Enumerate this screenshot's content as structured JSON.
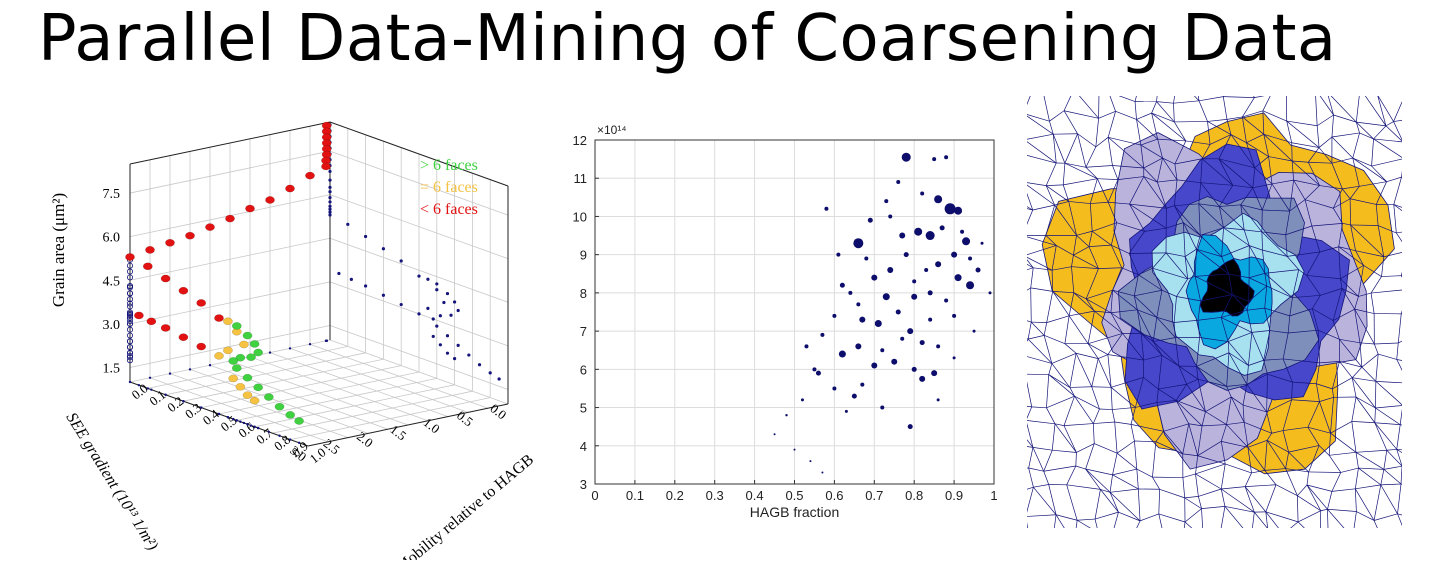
{
  "title": "Parallel Data-Mining of Coarsening Data",
  "colors": {
    "many_faces": "#3fd13f",
    "six_faces": "#f5c242",
    "few_faces": "#e21212",
    "projection": "#14147a",
    "scatter_points": "#0d0d6b",
    "grain_edges": "#141478"
  },
  "chart_data": [
    {
      "type": "scatter",
      "projection": "3d",
      "zlabel": "Grain area (μm²)",
      "xlabel": "SEE gradient (10¹³ 1/m²)",
      "ylabel": "Mobility relative to HAGB",
      "zticks": [
        "1.5",
        "3.0",
        "4.5",
        "6.0",
        "7.5"
      ],
      "xticks": [
        "0.0",
        "0.5",
        "1.0",
        "1.5",
        "2.0",
        "2.5",
        "3.0"
      ],
      "yticks": [
        "0.0",
        "0.1",
        "0.2",
        "0.3",
        "0.4",
        "0.5",
        "0.6",
        "0.7",
        "0.8",
        "0.9",
        "1.0"
      ],
      "xlim": [
        0,
        3.0
      ],
      "ylim": [
        0,
        1.0
      ],
      "zlim": [
        1.0,
        8.5
      ],
      "grid": true,
      "legend": {
        "position": "top-right",
        "entries": [
          {
            "label": "> 6 faces",
            "color": "#3fd13f"
          },
          {
            "label": "= 6 faces",
            "color": "#f5c242"
          },
          {
            "label": "< 6 faces",
            "color": "#e21212"
          }
        ]
      },
      "series": [
        {
          "name": "< 6 faces",
          "color": "#e21212",
          "points": [
            [
              0.05,
              0.0,
              8.4
            ],
            [
              0.05,
              0.0,
              8.2
            ],
            [
              0.05,
              0.0,
              8.0
            ],
            [
              0.05,
              0.0,
              7.8
            ],
            [
              0.05,
              0.0,
              7.6
            ],
            [
              0.05,
              0.0,
              7.4
            ],
            [
              0.06,
              0.0,
              7.2
            ],
            [
              0.06,
              0.0,
              7.0
            ],
            [
              0.3,
              0.0,
              6.8
            ],
            [
              0.6,
              0.0,
              6.5
            ],
            [
              0.9,
              0.0,
              6.25
            ],
            [
              1.2,
              0.0,
              6.1
            ],
            [
              1.5,
              0.0,
              5.9
            ],
            [
              1.8,
              0.0,
              5.75
            ],
            [
              2.1,
              0.0,
              5.6
            ],
            [
              2.4,
              0.0,
              5.5
            ],
            [
              2.7,
              0.0,
              5.4
            ],
            [
              3.0,
              0.0,
              5.3
            ],
            [
              3.0,
              0.1,
              5.2
            ],
            [
              3.0,
              0.2,
              5.0
            ],
            [
              3.0,
              0.3,
              4.8
            ],
            [
              3.0,
              0.4,
              4.6
            ],
            [
              3.0,
              0.5,
              4.3
            ],
            [
              3.0,
              0.05,
              3.4
            ],
            [
              3.0,
              0.12,
              3.35
            ],
            [
              3.0,
              0.2,
              3.3
            ],
            [
              3.0,
              0.3,
              3.2
            ],
            [
              3.0,
              0.4,
              3.1
            ]
          ]
        },
        {
          "name": "= 6 faces",
          "color": "#f5c242",
          "points": [
            [
              3.0,
              0.55,
              4.3
            ],
            [
              3.0,
              0.6,
              4.05
            ],
            [
              3.0,
              0.64,
              3.7
            ],
            [
              3.0,
              0.55,
              3.3
            ],
            [
              3.0,
              0.5,
              3.0
            ],
            [
              3.0,
              0.58,
              2.4
            ],
            [
              3.0,
              0.62,
              2.2
            ],
            [
              3.0,
              0.66,
              2.0
            ],
            [
              3.0,
              0.7,
              1.9
            ]
          ]
        },
        {
          "name": "> 6 faces",
          "color": "#3fd13f",
          "points": [
            [
              3.0,
              0.6,
              4.25
            ],
            [
              3.0,
              0.66,
              4.05
            ],
            [
              3.0,
              0.7,
              3.85
            ],
            [
              3.0,
              0.72,
              3.6
            ],
            [
              3.0,
              0.68,
              3.35
            ],
            [
              3.0,
              0.62,
              3.2
            ],
            [
              3.0,
              0.58,
              3.0
            ],
            [
              3.0,
              0.6,
              2.8
            ],
            [
              3.0,
              0.66,
              2.6
            ],
            [
              3.0,
              0.72,
              2.4
            ],
            [
              3.0,
              0.78,
              2.2
            ],
            [
              3.0,
              0.84,
              2.0
            ],
            [
              3.0,
              0.9,
              1.85
            ],
            [
              3.0,
              0.95,
              1.75
            ]
          ]
        }
      ]
    },
    {
      "type": "scatter",
      "xlabel": "HAGB fraction",
      "ylabel": "",
      "xlim": [
        0,
        1
      ],
      "ylim": [
        3,
        12
      ],
      "xticks": [
        "0",
        "0.1",
        "0.2",
        "0.3",
        "0.4",
        "0.5",
        "0.6",
        "0.7",
        "0.8",
        "0.9",
        "1"
      ],
      "yticks": [
        "3",
        "4",
        "5",
        "6",
        "7",
        "8",
        "9",
        "10",
        "11",
        "12"
      ],
      "y_exponent_label": "×10¹⁴",
      "grid": true,
      "points": [
        [
          0.78,
          11.55,
          4.5
        ],
        [
          0.85,
          11.5,
          2
        ],
        [
          0.88,
          11.55,
          2
        ],
        [
          0.66,
          9.3,
          5
        ],
        [
          0.77,
          9.5,
          3
        ],
        [
          0.81,
          9.6,
          4
        ],
        [
          0.86,
          10.45,
          4
        ],
        [
          0.89,
          10.2,
          5.5
        ],
        [
          0.91,
          10.15,
          4
        ],
        [
          0.84,
          9.5,
          4.5
        ],
        [
          0.93,
          9.35,
          4
        ],
        [
          0.9,
          9.0,
          3
        ],
        [
          0.86,
          8.75,
          3
        ],
        [
          0.91,
          8.4,
          3.5
        ],
        [
          0.94,
          8.2,
          4
        ],
        [
          0.96,
          8.6,
          2.5
        ],
        [
          0.74,
          8.6,
          3
        ],
        [
          0.7,
          8.4,
          3
        ],
        [
          0.73,
          7.9,
          3.5
        ],
        [
          0.8,
          7.9,
          3
        ],
        [
          0.84,
          8.0,
          2.5
        ],
        [
          0.62,
          8.2,
          2.5
        ],
        [
          0.66,
          7.7,
          2
        ],
        [
          0.67,
          7.3,
          3
        ],
        [
          0.71,
          7.2,
          3.5
        ],
        [
          0.76,
          7.5,
          2.5
        ],
        [
          0.79,
          7.0,
          3
        ],
        [
          0.82,
          6.7,
          2.5
        ],
        [
          0.86,
          6.6,
          2
        ],
        [
          0.62,
          6.4,
          3.5
        ],
        [
          0.66,
          6.6,
          3
        ],
        [
          0.7,
          6.1,
          3
        ],
        [
          0.75,
          6.2,
          3
        ],
        [
          0.8,
          6.0,
          2.5
        ],
        [
          0.85,
          5.9,
          3
        ],
        [
          0.82,
          5.75,
          3
        ],
        [
          0.56,
          5.9,
          2.5
        ],
        [
          0.6,
          5.5,
          2
        ],
        [
          0.65,
          5.3,
          2.5
        ],
        [
          0.72,
          5.0,
          2
        ],
        [
          0.79,
          4.5,
          2.5
        ],
        [
          0.58,
          10.2,
          2
        ],
        [
          0.61,
          9.0,
          2
        ],
        [
          0.69,
          9.9,
          2.5
        ],
        [
          0.73,
          10.4,
          2
        ],
        [
          0.82,
          10.6,
          2
        ],
        [
          0.87,
          9.7,
          2.5
        ],
        [
          0.92,
          9.6,
          2
        ],
        [
          0.78,
          9.0,
          2.5
        ],
        [
          0.83,
          8.6,
          2
        ],
        [
          0.88,
          7.8,
          2
        ],
        [
          0.9,
          7.4,
          2
        ],
        [
          0.68,
          8.9,
          2
        ],
        [
          0.64,
          8.0,
          2
        ],
        [
          0.6,
          7.4,
          2
        ],
        [
          0.57,
          6.9,
          2
        ],
        [
          0.53,
          6.6,
          2
        ],
        [
          0.55,
          6.0,
          2
        ],
        [
          0.52,
          5.2,
          1.5
        ],
        [
          0.48,
          4.8,
          1.2
        ],
        [
          0.45,
          4.3,
          1
        ],
        [
          0.5,
          3.9,
          1
        ],
        [
          0.54,
          3.6,
          1
        ],
        [
          0.57,
          3.3,
          1
        ],
        [
          0.76,
          10.9,
          2
        ],
        [
          0.74,
          10.0,
          2
        ],
        [
          0.8,
          8.3,
          2
        ],
        [
          0.77,
          6.8,
          2
        ],
        [
          0.72,
          6.5,
          2
        ],
        [
          0.67,
          5.6,
          2
        ],
        [
          0.84,
          7.3,
          2
        ],
        [
          0.94,
          8.9,
          2
        ],
        [
          0.97,
          9.3,
          1.5
        ],
        [
          0.99,
          8.0,
          1.5
        ],
        [
          0.63,
          4.9,
          1.5
        ],
        [
          0.86,
          5.2,
          1.5
        ],
        [
          0.9,
          6.3,
          1.5
        ],
        [
          0.95,
          7.0,
          1.5
        ]
      ]
    }
  ],
  "grain_map": {
    "rings": [
      {
        "name": "core",
        "color": "#000000"
      },
      {
        "name": "inner",
        "color": "#0aa8e0"
      },
      {
        "name": "ring-2",
        "color": "#a7e0ee"
      },
      {
        "name": "ring-3",
        "color": "#7e8fbb"
      },
      {
        "name": "ring-4",
        "color": "#4747cc"
      },
      {
        "name": "ring-5",
        "color": "#bab4dc"
      },
      {
        "name": "outer",
        "color": "#f5bc1e"
      }
    ]
  }
}
